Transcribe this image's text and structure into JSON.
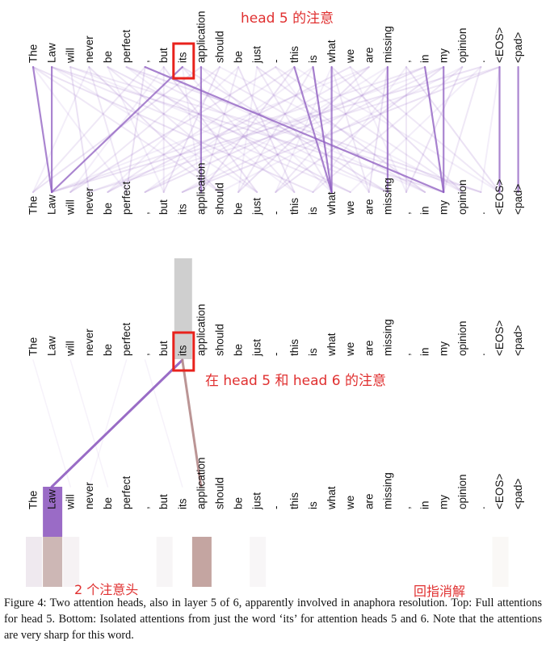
{
  "tokens": [
    "The",
    "Law",
    "will",
    "never",
    "be",
    "perfect",
    ",",
    "but",
    "its",
    "application",
    "should",
    "be",
    "just",
    "-",
    "this",
    "is",
    "what",
    "we",
    "are",
    "missing",
    ",",
    "in",
    "my",
    "opinion",
    ".",
    "<EOS>",
    "<pad>"
  ],
  "highlighted_token": "its",
  "annotations": {
    "top": "head 5 的注意",
    "middle": "在 head 5 和 head 6 的注意",
    "heads": "2 个注意头",
    "resolution": "回指消解"
  },
  "caption": "Figure 4: Two attention heads, also in layer 5 of 6, apparently involved in anaphora resolution. Top: Full attentions for head 5. Bottom: Isolated attentions from just the word ‘its’ for attention heads 5 and 6. Note that the attentions are very sharp for this word.",
  "colors": {
    "head5": "#8e5cc0",
    "head6": "#b48a8a",
    "highlight_box": "#e8221c",
    "annotation_text": "#e03030",
    "selected_column": "#cfcfcf"
  },
  "head5_strong_links": [
    {
      "from": "The",
      "to": "Law"
    },
    {
      "from": "Law",
      "to": "Law"
    },
    {
      "from": "its",
      "to": "Law"
    },
    {
      "from": "application",
      "to": "application"
    },
    {
      "from": "this",
      "to": "what"
    },
    {
      "from": "is",
      "to": "what"
    },
    {
      "from": "what",
      "to": "what"
    },
    {
      "from": "missing",
      "to": "missing"
    },
    {
      "from": ",",
      "to": "my"
    },
    {
      "from": "in",
      "to": "my"
    },
    {
      "from": "my",
      "to": "my"
    },
    {
      "from": "<EOS>",
      "to": "<EOS>"
    },
    {
      "from": "<pad>",
      "to": "<pad>"
    }
  ],
  "isolated_links": [
    {
      "from": "its",
      "to": "Law",
      "head": "head5"
    },
    {
      "from": "its",
      "to": "application",
      "head": "head6"
    }
  ]
}
